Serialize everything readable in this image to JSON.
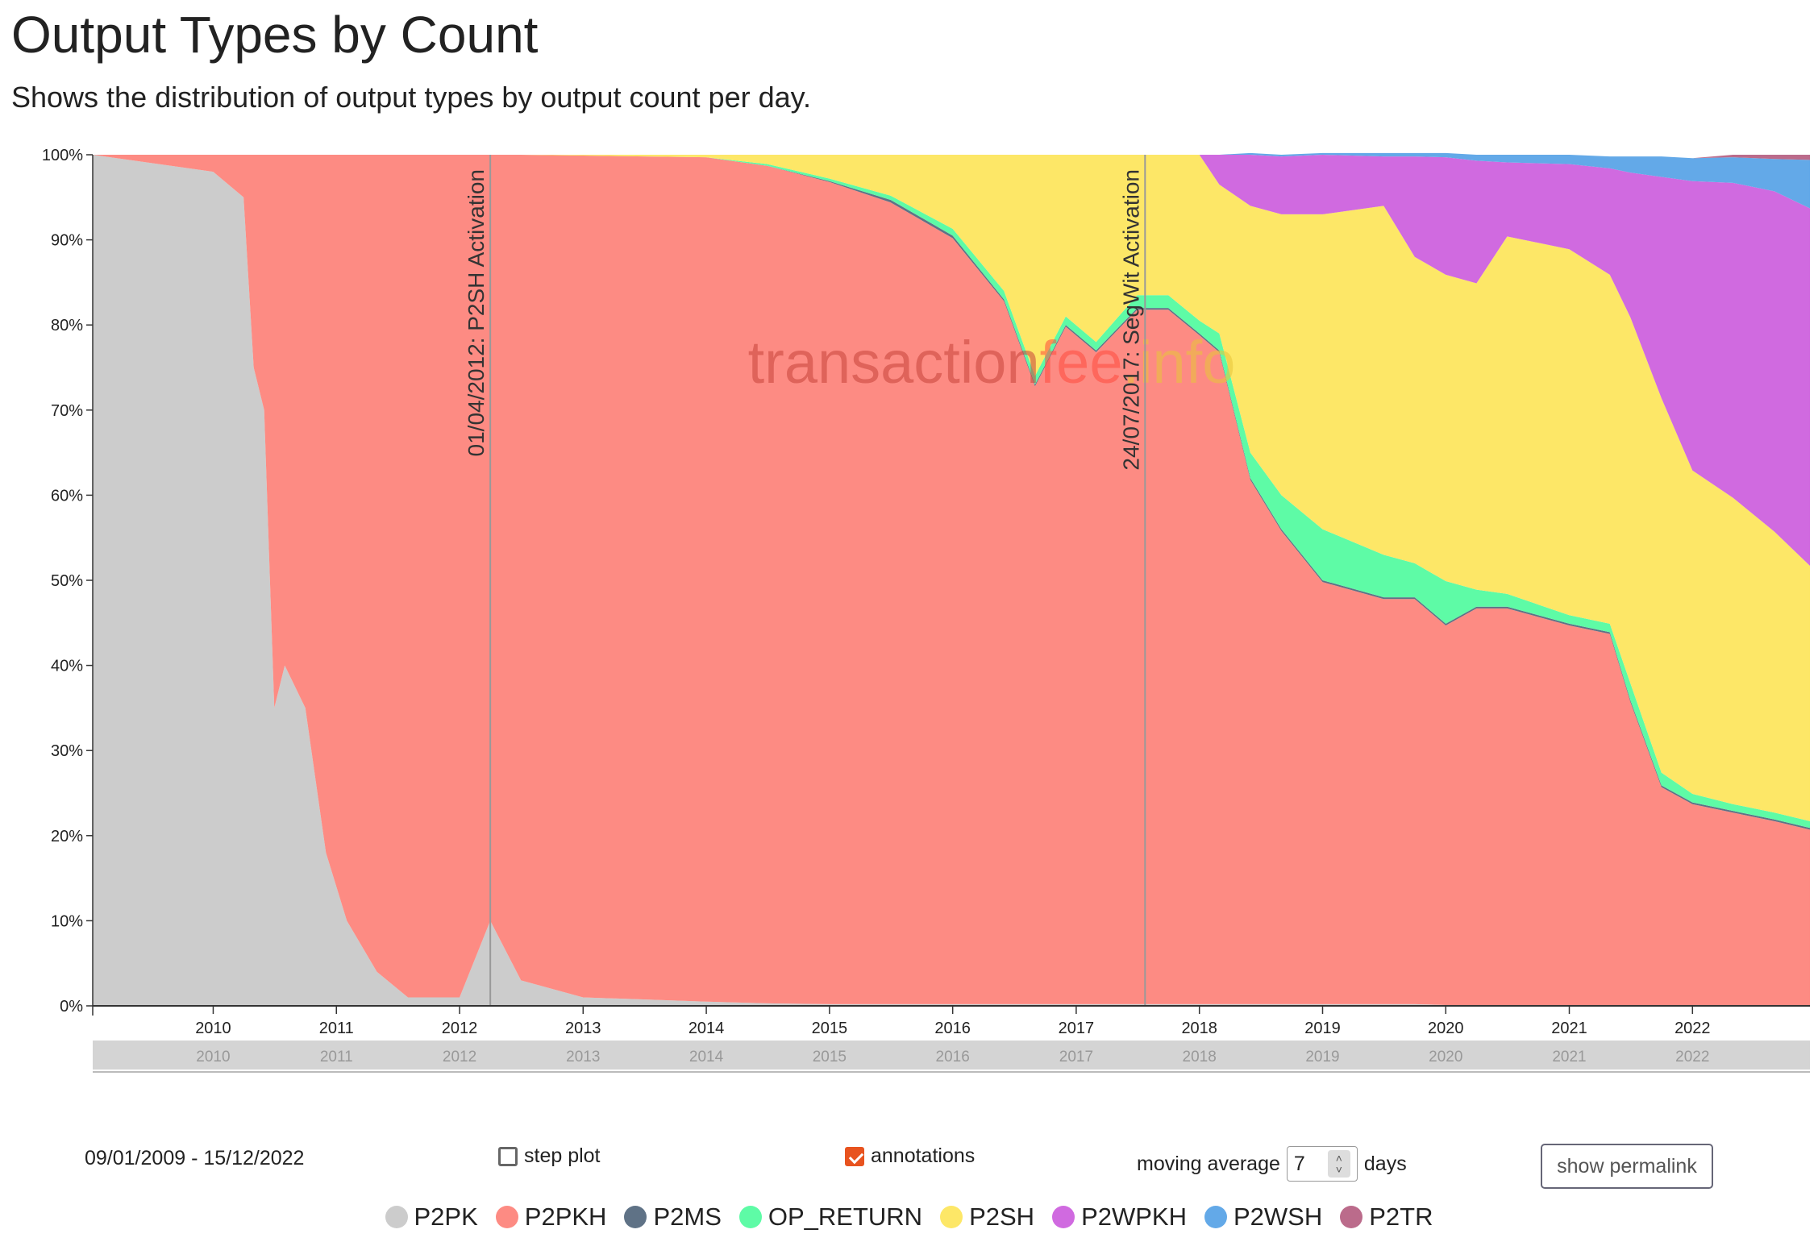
{
  "page": {
    "title": "Output Types by Count",
    "subtitle": "Shows the distribution of output types by output count per day."
  },
  "watermark": {
    "part1": "transaction",
    "part2": "fee",
    "part3": ".info",
    "colors": [
      "#c8433a",
      "#ff4a3d",
      "#e8c63a"
    ]
  },
  "controls": {
    "date_range": "09/01/2009 - 15/12/2022",
    "step_plot_label": "step plot",
    "step_plot_checked": false,
    "annotations_label": "annotations",
    "annotations_checked": true,
    "moving_average_label": "moving average",
    "moving_average_value": "7",
    "moving_average_unit": "days",
    "permalink_label": "show permalink"
  },
  "chart_data": {
    "type": "area",
    "stacked": true,
    "normalized_percent": true,
    "x_start": "2009-01-09",
    "x_end": "2022-12-15",
    "x_ticks": [
      "2010",
      "2011",
      "2012",
      "2013",
      "2014",
      "2015",
      "2016",
      "2017",
      "2018",
      "2019",
      "2020",
      "2021",
      "2022"
    ],
    "y_ticks": [
      "0%",
      "10%",
      "20%",
      "30%",
      "40%",
      "50%",
      "60%",
      "70%",
      "80%",
      "90%",
      "100%"
    ],
    "ylim": [
      0,
      100
    ],
    "grid": false,
    "legend_position": "bottom",
    "annotations": [
      {
        "date": "2012-04-01",
        "label": "01/04/2012: P2SH Activation"
      },
      {
        "date": "2017-07-24",
        "label": "24/07/2017: SegWit Activation"
      }
    ],
    "series": [
      {
        "name": "P2PK",
        "color": "#cccccc"
      },
      {
        "name": "P2PKH",
        "color": "#fd8b83"
      },
      {
        "name": "P2MS",
        "color": "#5f7286"
      },
      {
        "name": "OP_RETURN",
        "color": "#5efba6"
      },
      {
        "name": "P2SH",
        "color": "#fde767"
      },
      {
        "name": "P2WPKH",
        "color": "#d06ae0"
      },
      {
        "name": "P2WSH",
        "color": "#63a9e8"
      },
      {
        "name": "P2TR",
        "color": "#bb6b8b"
      }
    ],
    "x": [
      "2009-01-09",
      "2010-01-01",
      "2010-04-01",
      "2010-05-01",
      "2010-06-01",
      "2010-07-01",
      "2010-08-01",
      "2010-10-01",
      "2010-12-01",
      "2011-02-01",
      "2011-05-01",
      "2011-08-01",
      "2012-01-01",
      "2012-04-01",
      "2012-07-01",
      "2013-01-01",
      "2014-01-01",
      "2014-07-01",
      "2015-01-01",
      "2015-07-01",
      "2016-01-01",
      "2016-06-01",
      "2016-09-01",
      "2016-12-01",
      "2017-03-01",
      "2017-07-01",
      "2017-10-01",
      "2018-01-01",
      "2018-03-01",
      "2018-06-01",
      "2018-09-01",
      "2019-01-01",
      "2019-07-01",
      "2019-10-01",
      "2020-01-01",
      "2020-04-01",
      "2020-07-01",
      "2021-01-01",
      "2021-05-01",
      "2021-07-01",
      "2021-10-01",
      "2022-01-01",
      "2022-05-01",
      "2022-09-01",
      "2022-12-15"
    ],
    "values": {
      "P2PK": [
        100,
        98,
        95,
        75,
        70,
        35,
        40,
        35,
        18,
        10,
        4,
        1,
        1,
        10,
        3,
        1,
        0.5,
        0.3,
        0.2,
        0.2,
        0.2,
        0.2,
        0.2,
        0.2,
        0.2,
        0.2,
        0.2,
        0.2,
        0.2,
        0.2,
        0.2,
        0.2,
        0.2,
        0.2,
        0.1,
        0.1,
        0.1,
        0.1,
        0.1,
        0.1,
        0.1,
        0.1,
        0.1,
        0.1,
        0.1
      ],
      "P2PKH": [
        0,
        2,
        5,
        25,
        30,
        65,
        60,
        65,
        82,
        90,
        96,
        99,
        99,
        90,
        97,
        98.9,
        99.2,
        98.4,
        96.6,
        94.2,
        90.0,
        82.6,
        72.6,
        79.6,
        76.6,
        81.6,
        81.6,
        78.6,
        76.6,
        61.6,
        55.6,
        49.6,
        47.6,
        47.6,
        44.6,
        46.6,
        46.6,
        44.6,
        43.6,
        35.6,
        25.6,
        23.6,
        22.6,
        21.6,
        20.6
      ],
      "P2MS": [
        0,
        0,
        0,
        0,
        0,
        0,
        0,
        0,
        0,
        0,
        0,
        0,
        0,
        0,
        0,
        0,
        0,
        0,
        0.1,
        0.3,
        0.3,
        0.2,
        0.2,
        0.2,
        0.2,
        0.2,
        0.2,
        0.2,
        0.2,
        0.2,
        0.2,
        0.2,
        0.2,
        0.2,
        0.2,
        0.2,
        0.2,
        0.2,
        0.2,
        0.2,
        0.2,
        0.2,
        0.2,
        0.2,
        0.2
      ],
      "OP_RETURN": [
        0,
        0,
        0,
        0,
        0,
        0,
        0,
        0,
        0,
        0,
        0,
        0,
        0,
        0,
        0,
        0,
        0,
        0.2,
        0.3,
        0.5,
        0.8,
        1.0,
        1.0,
        1.0,
        1.0,
        1.5,
        1.5,
        1.5,
        2.0,
        3.0,
        4.0,
        6.0,
        5.0,
        4.0,
        5.0,
        2.0,
        1.5,
        1.0,
        1.0,
        2.0,
        1.5,
        1.0,
        0.8,
        0.8,
        0.8
      ],
      "P2SH": [
        0,
        0,
        0,
        0,
        0,
        0,
        0,
        0,
        0,
        0,
        0,
        0,
        0,
        0,
        0,
        0.1,
        0.3,
        1.1,
        2.8,
        4.8,
        8.7,
        16.0,
        26.0,
        19.0,
        22.0,
        16.5,
        16.5,
        19.5,
        17.5,
        29.0,
        33.0,
        37.0,
        41.0,
        36.0,
        36.0,
        36.0,
        42.0,
        43.0,
        41.0,
        43.0,
        44.0,
        38.0,
        36.0,
        33.0,
        30.0
      ],
      "P2WPKH": [
        0,
        0,
        0,
        0,
        0,
        0,
        0,
        0,
        0,
        0,
        0,
        0,
        0,
        0,
        0,
        0,
        0,
        0,
        0,
        0,
        0,
        0,
        0,
        0,
        0,
        0,
        0,
        0,
        3.5,
        6.0,
        6.8,
        7.0,
        5.8,
        11.8,
        13.8,
        14.4,
        8.7,
        10.0,
        12.5,
        17.0,
        26.0,
        34.0,
        37.0,
        40.0,
        42.0
      ],
      "P2WSH": [
        0,
        0,
        0,
        0,
        0,
        0,
        0,
        0,
        0,
        0,
        0,
        0,
        0,
        0,
        0,
        0,
        0,
        0,
        0,
        0,
        0,
        0,
        0,
        0,
        0,
        0,
        0,
        0,
        0,
        0.2,
        0.2,
        0.2,
        0.4,
        0.4,
        0.5,
        0.7,
        0.9,
        1.1,
        1.4,
        1.9,
        2.4,
        2.7,
        3.0,
        3.8,
        5.7
      ],
      "P2TR": [
        0,
        0,
        0,
        0,
        0,
        0,
        0,
        0,
        0,
        0,
        0,
        0,
        0,
        0,
        0,
        0,
        0,
        0,
        0,
        0,
        0,
        0,
        0,
        0,
        0,
        0,
        0,
        0,
        0,
        0,
        0,
        0,
        0,
        0,
        0,
        0,
        0,
        0,
        0,
        0,
        0,
        0,
        0.3,
        0.5,
        0.6
      ]
    }
  }
}
